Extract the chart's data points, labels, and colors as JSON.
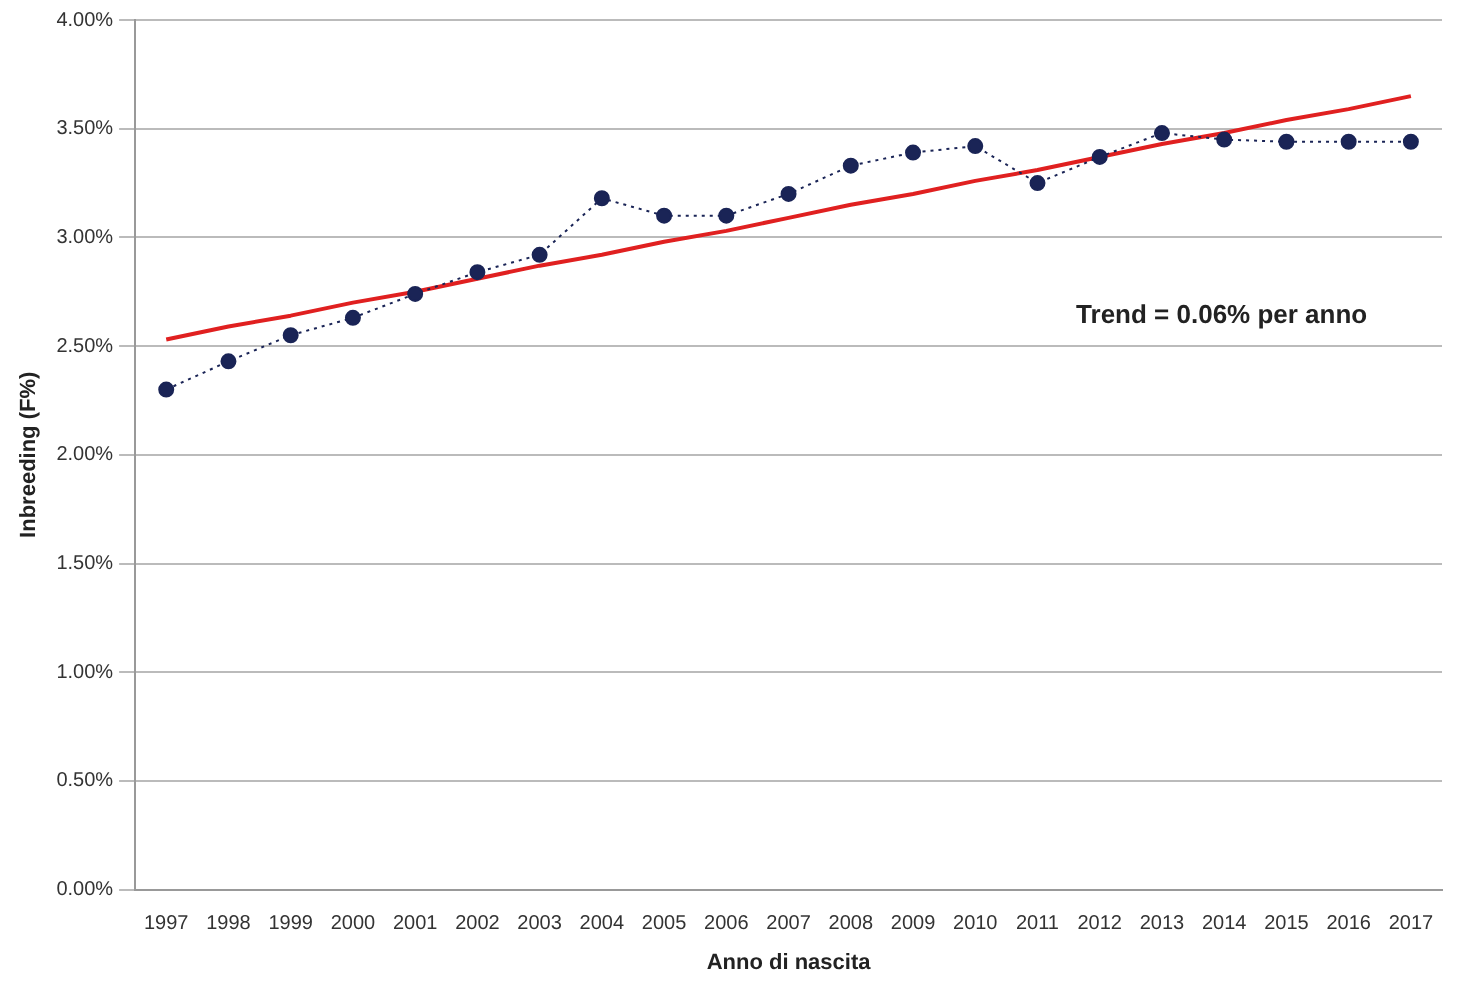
{
  "chart_data": {
    "type": "line",
    "xlabel": "Anno di nascita",
    "ylabel": "Inbreeding (F%)",
    "categories": [
      "1997",
      "1998",
      "1999",
      "2000",
      "2001",
      "2002",
      "2003",
      "2004",
      "2005",
      "2006",
      "2007",
      "2008",
      "2009",
      "2010",
      "2011",
      "2012",
      "2013",
      "2014",
      "2015",
      "2016",
      "2017"
    ],
    "series": [
      {
        "type": "line",
        "color": "#1a2456",
        "marker": "circle",
        "line_style": "dotted",
        "values": [
          2.3,
          2.43,
          2.55,
          2.63,
          2.74,
          2.84,
          2.92,
          3.18,
          3.1,
          3.1,
          3.2,
          3.33,
          3.39,
          3.42,
          3.25,
          3.37,
          3.48,
          3.45,
          3.44,
          3.44,
          3.44
        ]
      },
      {
        "type": "line",
        "color": "#e02020",
        "marker": "none",
        "line_style": "solid",
        "values": [
          2.53,
          2.59,
          2.64,
          2.7,
          2.75,
          2.81,
          2.87,
          2.92,
          2.98,
          3.03,
          3.09,
          3.15,
          3.2,
          3.26,
          3.31,
          3.37,
          3.43,
          3.48,
          3.54,
          3.59,
          3.65
        ]
      }
    ],
    "ylim": [
      0,
      4
    ],
    "yticks": [
      {
        "value": 0,
        "label": "0.00%"
      },
      {
        "value": 0.5,
        "label": "0.50%"
      },
      {
        "value": 1,
        "label": "1.00%"
      },
      {
        "value": 1.5,
        "label": "1.50%"
      },
      {
        "value": 2,
        "label": "2.00%"
      },
      {
        "value": 2.5,
        "label": "2.50%"
      },
      {
        "value": 3,
        "label": "3.00%"
      },
      {
        "value": 3.5,
        "label": "3.50%"
      },
      {
        "value": 4,
        "label": "4.00%"
      }
    ],
    "grid": "y",
    "legend": false,
    "annotations": [
      "Trend = 0.06% per anno"
    ]
  }
}
